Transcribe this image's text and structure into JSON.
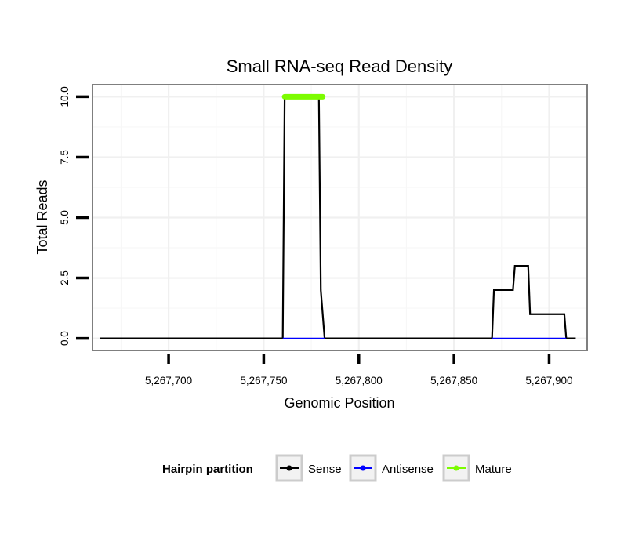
{
  "chart_data": {
    "type": "line",
    "title": "Small RNA-seq Read Density",
    "xlabel": "Genomic Position",
    "ylabel": "Total Reads",
    "xlim": [
      5267660,
      5267920
    ],
    "ylim": [
      -0.5,
      10.5
    ],
    "x_ticks": [
      5267700,
      5267750,
      5267800,
      5267850,
      5267900
    ],
    "x_tick_labels": [
      "5,267,700",
      "5,267,750",
      "5,267,800",
      "5,267,850",
      "5,267,900"
    ],
    "y_ticks": [
      0,
      2.5,
      5,
      7.5,
      10
    ],
    "y_tick_labels": [
      "0.0",
      "2.5",
      "5.0",
      "7.5",
      "10.0"
    ],
    "grid": true,
    "legend": {
      "title": "Hairpin partition",
      "position": "bottom",
      "entries": [
        {
          "name": "Sense",
          "color": "#000000"
        },
        {
          "name": "Antisense",
          "color": "#0000ff"
        },
        {
          "name": "Mature",
          "color": "#7cfc00"
        }
      ]
    },
    "series": [
      {
        "name": "Sense",
        "color": "#000000",
        "x": [
          5267664,
          5267760,
          5267761,
          5267779,
          5267780,
          5267782,
          5267870,
          5267871,
          5267881,
          5267882,
          5267889,
          5267890,
          5267908,
          5267909,
          5267914
        ],
        "y": [
          0,
          0,
          10,
          10,
          2,
          0,
          0,
          2,
          2,
          3,
          3,
          1,
          1,
          0,
          0
        ]
      },
      {
        "name": "Antisense",
        "color": "#0000ff",
        "segments": [
          {
            "x": [
              5267760,
              5267782
            ],
            "y": [
              0,
              0
            ]
          },
          {
            "x": [
              5267870,
              5267909
            ],
            "y": [
              0,
              0
            ]
          }
        ]
      },
      {
        "name": "Mature",
        "color": "#7cfc00",
        "x": [
          5267761,
          5267781
        ],
        "y": [
          10,
          10
        ]
      }
    ]
  }
}
